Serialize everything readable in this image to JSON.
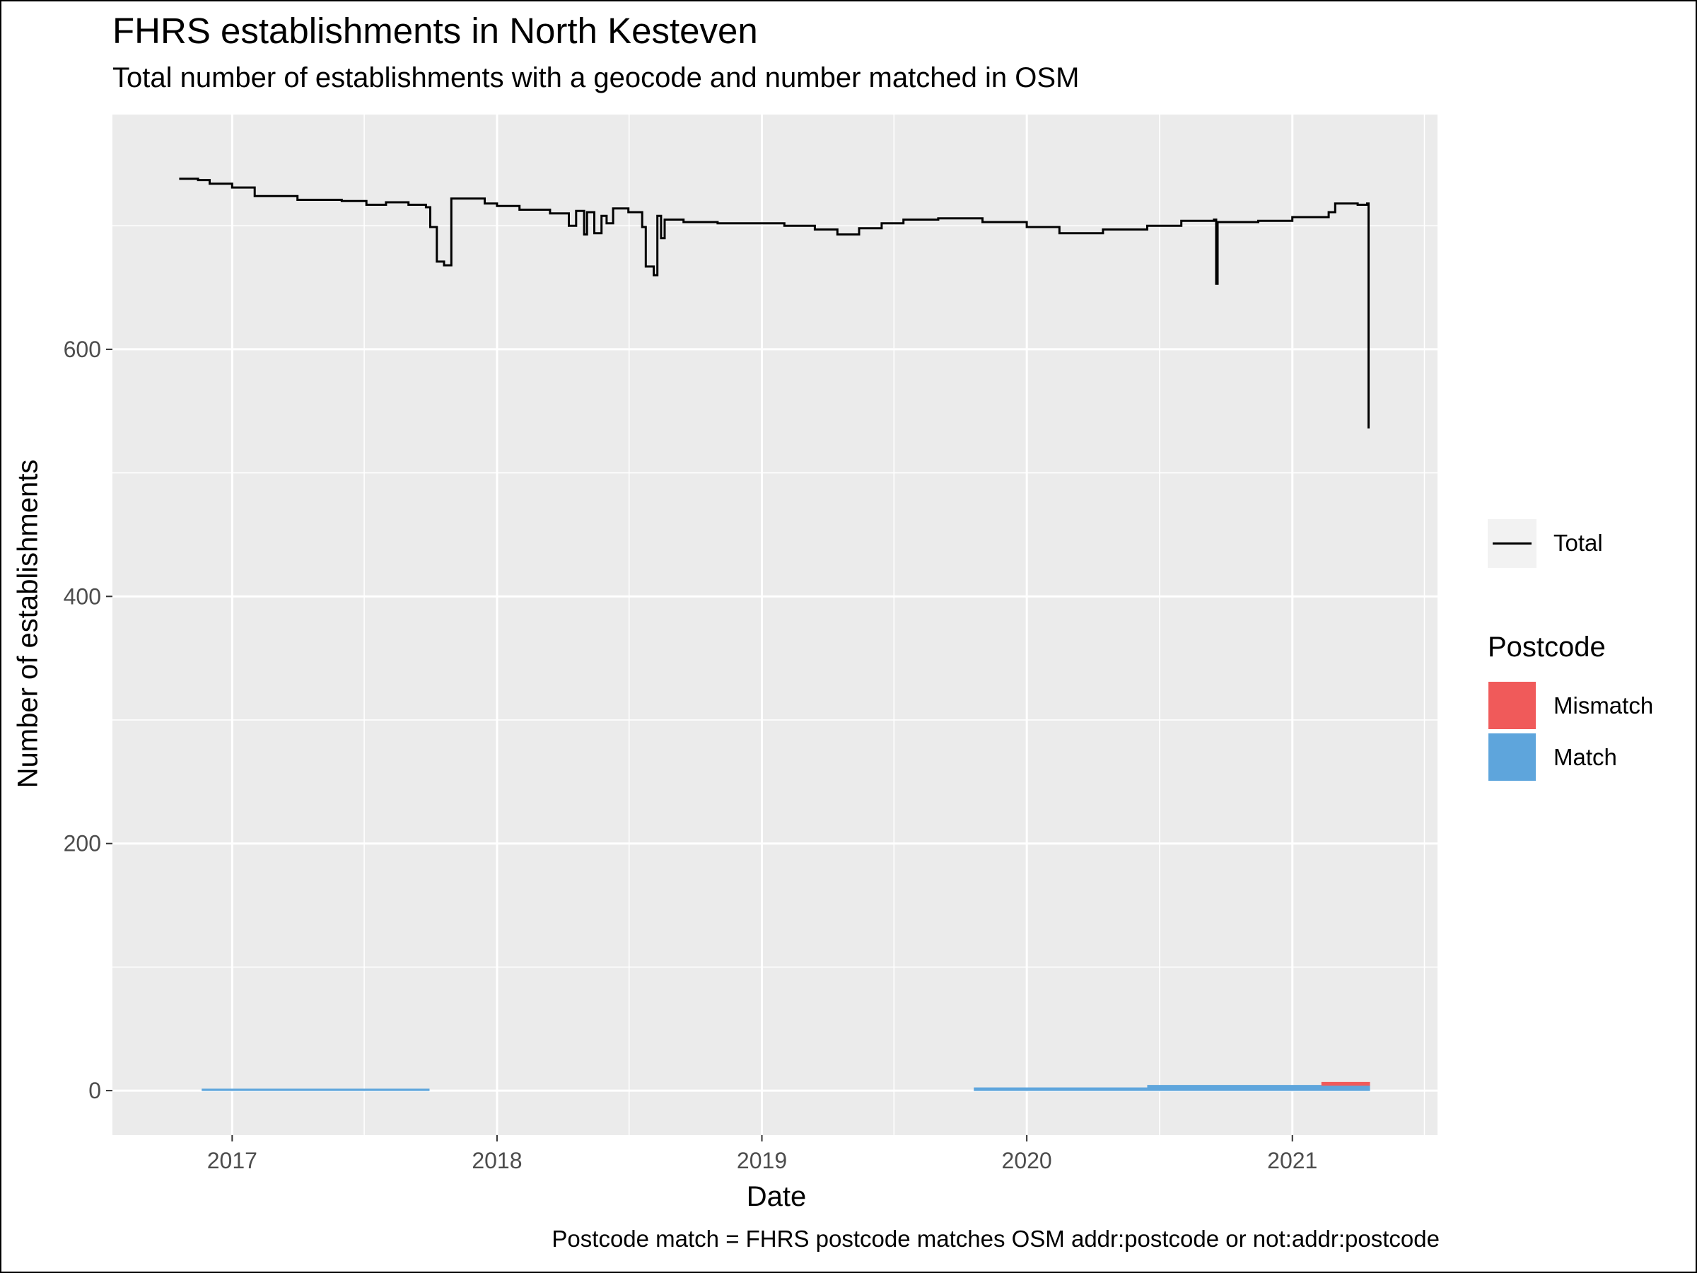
{
  "chart_data": {
    "type": "line",
    "title": "FHRS establishments in North Kesteven",
    "subtitle": "Total number of establishments with a geocode and number matched in OSM",
    "xlabel": "Date",
    "ylabel": "Number of establishments",
    "caption": "Postcode match = FHRS postcode matches OSM addr:postcode or not:addr:postcode",
    "xlim": [
      "2016-07-20",
      "2021-07-20"
    ],
    "ylim": [
      -36,
      790
    ],
    "x_ticks": [
      "2017",
      "2018",
      "2019",
      "2020",
      "2021"
    ],
    "y_ticks": [
      0,
      200,
      400,
      600
    ],
    "grid": true,
    "legend_position": "right",
    "colors": {
      "Total": "#000000",
      "Mismatch": "#f05a5a",
      "Match": "#5ea5dc",
      "panel": "#ebebeb",
      "grid": "#ffffff"
    },
    "series": [
      {
        "name": "Total",
        "style": "step-line",
        "points": [
          [
            "2016-10-20",
            738
          ],
          [
            "2016-11-15",
            737
          ],
          [
            "2016-12-01",
            734
          ],
          [
            "2017-01-01",
            731
          ],
          [
            "2017-02-01",
            724
          ],
          [
            "2017-04-01",
            721
          ],
          [
            "2017-06-01",
            720
          ],
          [
            "2017-07-05",
            717
          ],
          [
            "2017-08-01",
            719
          ],
          [
            "2017-09-01",
            717
          ],
          [
            "2017-09-25",
            715
          ],
          [
            "2017-10-01",
            699
          ],
          [
            "2017-10-10",
            671
          ],
          [
            "2017-10-20",
            668
          ],
          [
            "2017-10-30",
            722
          ],
          [
            "2017-11-15",
            722
          ],
          [
            "2017-12-15",
            718
          ],
          [
            "2018-01-01",
            716
          ],
          [
            "2018-02-01",
            713
          ],
          [
            "2018-03-15",
            710
          ],
          [
            "2018-04-01",
            710
          ],
          [
            "2018-04-10",
            700
          ],
          [
            "2018-04-20",
            712
          ],
          [
            "2018-05-01",
            693
          ],
          [
            "2018-05-05",
            711
          ],
          [
            "2018-05-15",
            694
          ],
          [
            "2018-05-25",
            708
          ],
          [
            "2018-06-01",
            702
          ],
          [
            "2018-06-10",
            714
          ],
          [
            "2018-07-01",
            711
          ],
          [
            "2018-07-20",
            699
          ],
          [
            "2018-07-25",
            667
          ],
          [
            "2018-08-05",
            660
          ],
          [
            "2018-08-10",
            708
          ],
          [
            "2018-08-15",
            690
          ],
          [
            "2018-08-20",
            705
          ],
          [
            "2018-09-15",
            703
          ],
          [
            "2018-11-01",
            702
          ],
          [
            "2018-12-15",
            702
          ],
          [
            "2019-02-01",
            700
          ],
          [
            "2019-03-15",
            697
          ],
          [
            "2019-04-15",
            693
          ],
          [
            "2019-05-15",
            698
          ],
          [
            "2019-06-15",
            702
          ],
          [
            "2019-07-15",
            705
          ],
          [
            "2019-09-01",
            706
          ],
          [
            "2019-11-01",
            703
          ],
          [
            "2020-01-01",
            699
          ],
          [
            "2020-02-15",
            694
          ],
          [
            "2020-04-15",
            697
          ],
          [
            "2020-06-15",
            700
          ],
          [
            "2020-08-01",
            704
          ],
          [
            "2020-09-15",
            705
          ],
          [
            "2020-09-18",
            653
          ],
          [
            "2020-09-20",
            703
          ],
          [
            "2020-11-15",
            704
          ],
          [
            "2021-01-01",
            707
          ],
          [
            "2021-02-20",
            711
          ],
          [
            "2021-03-01",
            718
          ],
          [
            "2021-04-01",
            717
          ],
          [
            "2021-04-14",
            718
          ],
          [
            "2021-04-16",
            536
          ]
        ]
      },
      {
        "name": "Mismatch",
        "style": "area",
        "points": [
          [
            "2021-02-10",
            4
          ],
          [
            "2021-04-18",
            4
          ]
        ]
      },
      {
        "name": "Match",
        "style": "area",
        "segments": [
          {
            "from": "2016-11-20",
            "to": "2017-09-30",
            "value": 1
          },
          {
            "from": "2019-10-20",
            "to": "2020-06-15",
            "value": 2
          },
          {
            "from": "2020-06-15",
            "to": "2021-04-18",
            "value": 4
          }
        ]
      }
    ],
    "legend": {
      "line_entries": [
        "Total"
      ],
      "fill_title": "Postcode",
      "fill_entries": [
        "Mismatch",
        "Match"
      ]
    }
  }
}
